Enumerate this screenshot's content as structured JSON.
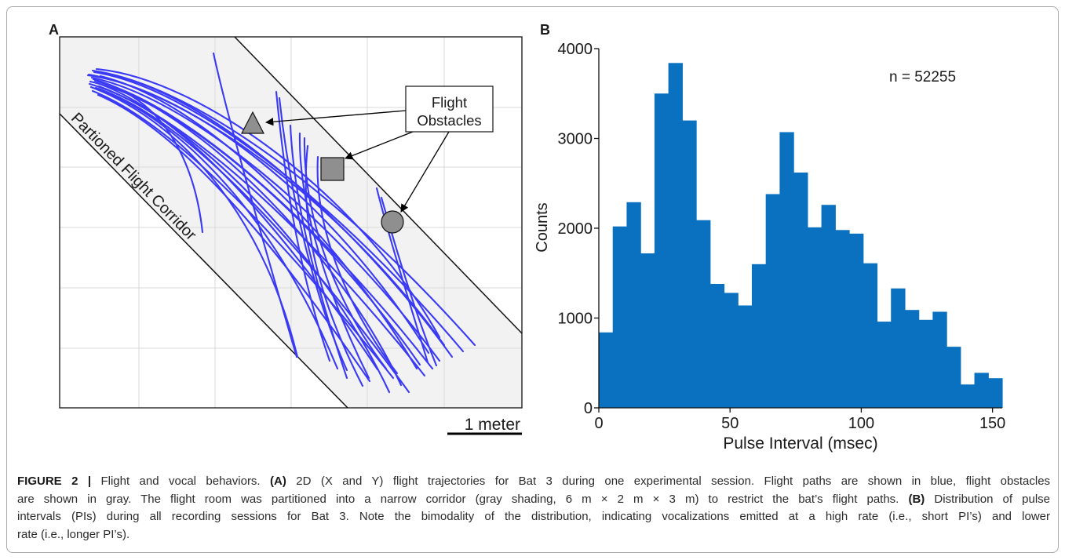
{
  "figure": {
    "panel_a": {
      "label": "A",
      "corridor_label": "Partioned Flight Corridor",
      "obstacles_label_line1": "Flight",
      "obstacles_label_line2": "Obstacles",
      "scale_bar_label": "1 meter",
      "colors": {
        "trajectory": "#3a3af5",
        "obstacle": "#8f8f8f",
        "corridor": "#f2f2f2",
        "grid": "#d9d9d9"
      }
    },
    "panel_b": {
      "label": "B"
    }
  },
  "chart_data": {
    "type": "bar",
    "title": "",
    "xlabel": "Pulse Interval (msec)",
    "ylabel": "Counts",
    "xlim": [
      0,
      153.7
    ],
    "ylim": [
      0,
      4000
    ],
    "xticks": [
      0,
      50,
      100,
      150
    ],
    "yticks": [
      0,
      1000,
      2000,
      3000,
      4000
    ],
    "bin_edges": [
      0,
      5.3,
      10.6,
      15.9,
      21.2,
      26.5,
      31.8,
      37.1,
      42.4,
      47.7,
      53.0,
      58.3,
      63.6,
      68.9,
      74.2,
      79.5,
      84.8,
      90.1,
      95.4,
      100.7,
      106.0,
      111.3,
      116.6,
      121.9,
      127.2,
      132.5,
      137.8,
      143.1,
      148.4,
      153.7
    ],
    "counts": [
      840,
      2020,
      2290,
      1720,
      3500,
      3840,
      3200,
      2090,
      1380,
      1280,
      1140,
      1600,
      2380,
      3070,
      2620,
      2010,
      2260,
      1980,
      1940,
      1610,
      960,
      1330,
      1090,
      980,
      1070,
      680,
      260,
      390,
      330
    ],
    "annotation": "n = 52255",
    "color": "#0a70c0",
    "grid": false
  },
  "caption": {
    "figure_label": "FIGURE 2 |",
    "title": "Flight and vocal behaviors.",
    "panel_a_tag": "(A)",
    "panel_a_text_line1": "2D (X and Y) flight trajectories for Bat 3 during one experimental session. Flight paths are shown in blue, flight obstacles",
    "panel_a_text_line2": "are shown in gray. The flight room was partitioned into a narrow corridor (gray shading, 6 m × 2 m × 3 m) to restrict the bat’s flight paths.",
    "panel_b_tag": "(B)",
    "panel_b_text_line2": "Distribution of pulse",
    "panel_b_text_line3": "intervals (PIs) during all recording sessions for Bat 3. Note the bimodality of the distribution, indicating vocalizations emitted at a high rate (i.e., short PI’s) and lower",
    "panel_b_text_line4": "rate (i.e., longer PI’s)."
  }
}
